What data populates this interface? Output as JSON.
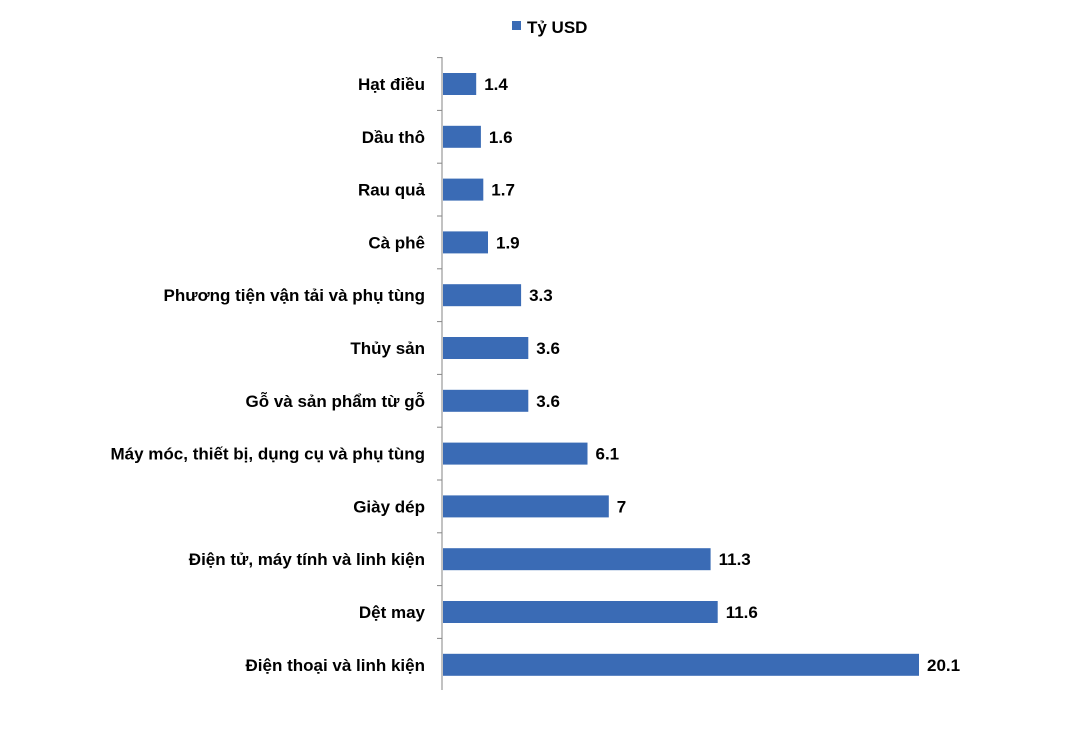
{
  "chart_data": {
    "type": "bar",
    "orientation": "horizontal",
    "legend_position": "top",
    "grid": false,
    "xlim": [
      0,
      20.1
    ],
    "categories": [
      "Hạt điều",
      "Dầu thô",
      "Rau quả",
      "Cà phê",
      "Phương tiện vận tải và phụ tùng",
      "Thủy sản",
      "Gỗ và sản phẩm từ gỗ",
      "Máy móc, thiết bị, dụng cụ và phụ tùng",
      "Giày dép",
      "Điện tử, máy tính và linh kiện",
      "Dệt may",
      "Điện thoại và linh kiện"
    ],
    "series": [
      {
        "name": "Tỷ USD",
        "color": "#3A6BB5",
        "values": [
          1.4,
          1.6,
          1.7,
          1.9,
          3.3,
          3.6,
          3.6,
          6.1,
          7,
          11.3,
          11.6,
          20.1
        ],
        "labels": [
          "1.4",
          "1.6",
          "1.7",
          "1.9",
          "3.3",
          "3.6",
          "3.6",
          "6.1",
          "7",
          "11.3",
          "11.6",
          "20.1"
        ]
      }
    ]
  }
}
